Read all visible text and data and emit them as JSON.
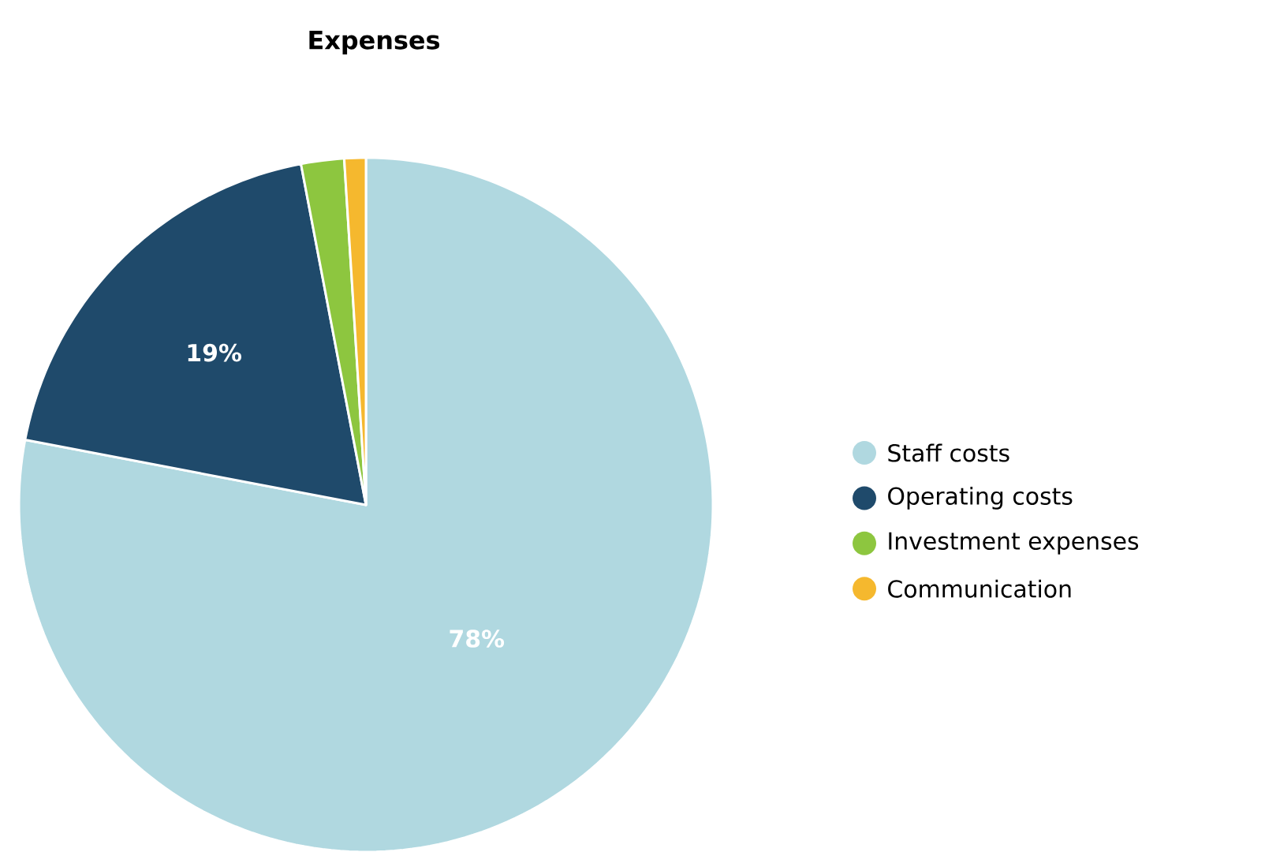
{
  "chart_data": {
    "type": "pie",
    "title": "Expenses",
    "categories": [
      "Staff costs",
      "Operating costs",
      "Investment expenses",
      "Communication"
    ],
    "values": [
      78,
      19,
      2,
      1
    ],
    "colors": [
      "#b0d8e0",
      "#1f4a6b",
      "#8dc63f",
      "#f5b82e"
    ],
    "value_labels": [
      "78%",
      "19%",
      null,
      null
    ],
    "legend": "right"
  }
}
